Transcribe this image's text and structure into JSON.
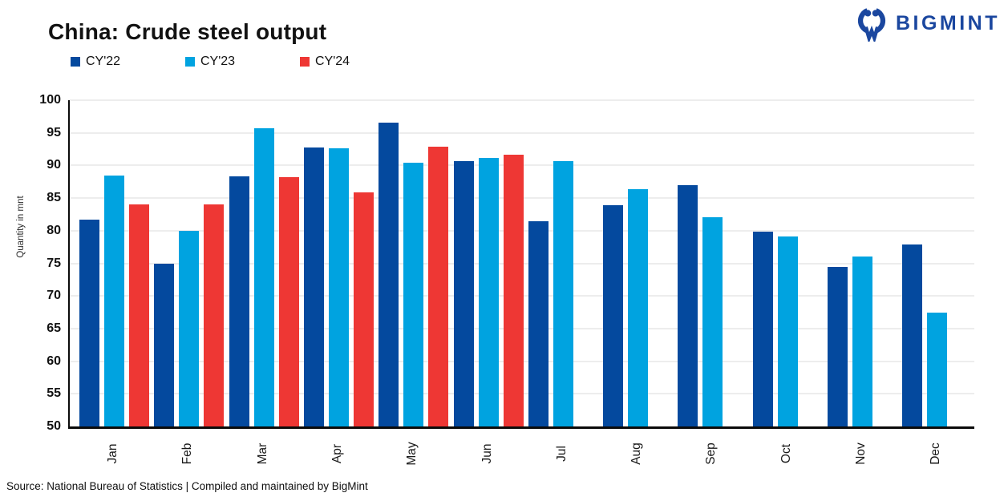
{
  "header": {
    "title": "China: Crude steel output"
  },
  "logo": {
    "text": "BIGMINT",
    "color": "#1b479f",
    "icon": "bigmint-people-m-icon"
  },
  "source": {
    "text": "Source: National Bureau of Statistics | Compiled and maintained by BigMint"
  },
  "colors": {
    "cy22": "#04499e",
    "cy23": "#00a3e0",
    "cy24": "#ee3734",
    "grid": "#ededed",
    "axis": "#0b0b0b"
  },
  "chart_data": {
    "type": "bar",
    "title": "China: Crude steel output",
    "ylabel": "Quantity in mnt",
    "xlabel": "",
    "ylim": [
      50,
      100
    ],
    "ytick_step": 5,
    "yticks": [
      50,
      55,
      60,
      65,
      70,
      75,
      80,
      85,
      90,
      95,
      100
    ],
    "grid": true,
    "legend_position": "top-left",
    "categories": [
      "Jan",
      "Feb",
      "Mar",
      "Apr",
      "May",
      "Jun",
      "Jul",
      "Aug",
      "Sep",
      "Oct",
      "Nov",
      "Dec"
    ],
    "series": [
      {
        "name": "CY'22",
        "color": "#04499e",
        "values": [
          81.7,
          75.0,
          88.3,
          92.8,
          96.6,
          90.7,
          81.4,
          83.9,
          87.0,
          79.8,
          74.5,
          77.9
        ]
      },
      {
        "name": "CY'23",
        "color": "#00a3e0",
        "values": [
          88.5,
          80.0,
          95.7,
          92.6,
          90.4,
          91.1,
          90.7,
          86.4,
          82.1,
          79.1,
          76.1,
          67.4
        ]
      },
      {
        "name": "CY'24",
        "color": "#ee3734",
        "values": [
          84.0,
          84.0,
          88.2,
          85.9,
          92.9,
          91.6,
          null,
          null,
          null,
          null,
          null,
          null
        ]
      }
    ]
  }
}
